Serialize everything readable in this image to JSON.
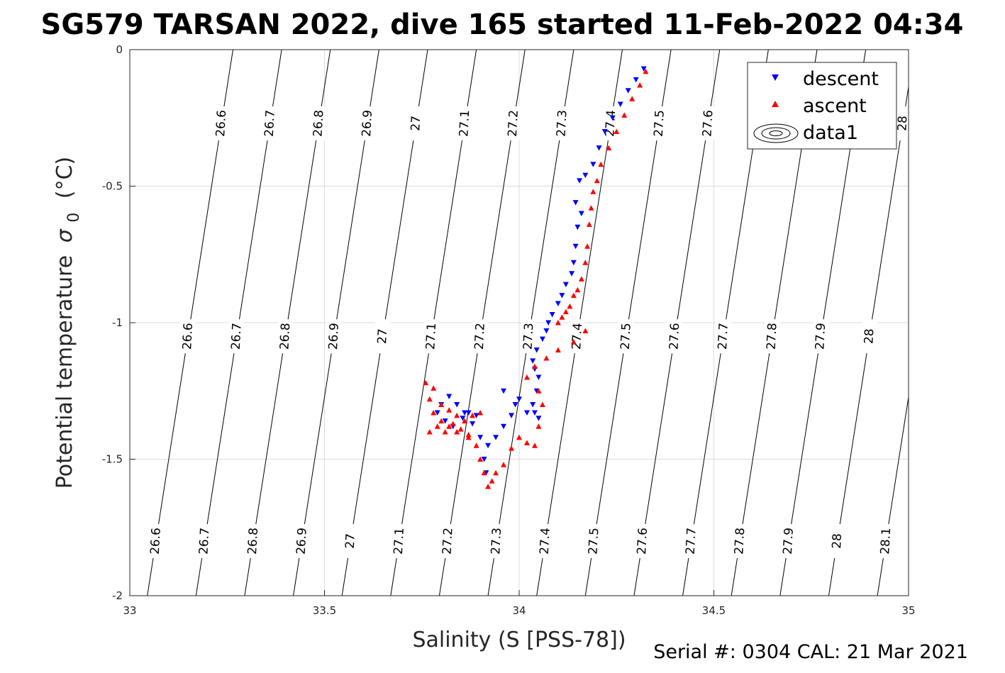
{
  "chart_data": {
    "type": "scatter",
    "title": "SG579 TARSAN 2022, dive 165 started 11-Feb-2022 04:34",
    "xlabel": "Salinity (S [PSS-78])",
    "ylabel_main": "Potential temperature",
    "ylabel_sym": "σ",
    "ylabel_sub": "0",
    "ylabel_unit": "(°C)",
    "footer": "Serial #: 0304  CAL: 21 Mar 2021",
    "xlim": [
      33,
      35
    ],
    "ylim": [
      -2,
      0
    ],
    "xticks": [
      33,
      33.5,
      34,
      34.5,
      35
    ],
    "xtick_labels": [
      "33",
      "33.5",
      "34",
      "34.5",
      "35"
    ],
    "yticks": [
      -2,
      -1.5,
      -1,
      -0.5,
      0
    ],
    "ytick_labels": [
      "-2",
      "-1.5",
      "-1",
      "-0.5",
      "0"
    ],
    "grid": true,
    "legend_placement": "top-right",
    "legend": [
      "descent",
      "ascent",
      "data1"
    ],
    "isopycnals": {
      "levels": [
        26.6,
        26.7,
        26.8,
        26.9,
        27,
        27.1,
        27.2,
        27.3,
        27.4,
        27.5,
        27.6,
        27.7,
        27.8,
        27.9,
        28,
        28.1
      ],
      "labels": [
        "26.6",
        "26.7",
        "26.8",
        "26.9",
        "27",
        "27.1",
        "27.2",
        "27.3",
        "27.4",
        "27.5",
        "27.6",
        "27.7",
        "27.8",
        "27.9",
        "28",
        "28.1"
      ],
      "salinity_at_theta_0": [
        33.265,
        33.39,
        33.515,
        33.64,
        33.765,
        33.89,
        34.015,
        34.14,
        34.265,
        34.39,
        34.515,
        34.64,
        34.765,
        34.89,
        35.015,
        35.14
      ],
      "salinity_at_theta_minus2": [
        33.045,
        33.17,
        33.295,
        33.42,
        33.545,
        33.67,
        33.795,
        33.92,
        34.045,
        34.17,
        34.295,
        34.42,
        34.545,
        34.67,
        34.795,
        34.92
      ]
    },
    "series": [
      {
        "name": "descent",
        "marker": "triangle-down",
        "color": "#0000ff",
        "points": [
          [
            34.32,
            -0.07
          ],
          [
            34.3,
            -0.11
          ],
          [
            34.28,
            -0.15
          ],
          [
            34.26,
            -0.2
          ],
          [
            34.24,
            -0.25
          ],
          [
            34.22,
            -0.3
          ],
          [
            34.205,
            -0.36
          ],
          [
            34.19,
            -0.42
          ],
          [
            34.17,
            -0.46
          ],
          [
            34.155,
            -0.48
          ],
          [
            34.145,
            -0.56
          ],
          [
            34.16,
            -0.6
          ],
          [
            34.15,
            -0.65
          ],
          [
            34.145,
            -0.72
          ],
          [
            34.14,
            -0.78
          ],
          [
            34.135,
            -0.82
          ],
          [
            34.12,
            -0.86
          ],
          [
            34.11,
            -0.9
          ],
          [
            34.1,
            -0.93
          ],
          [
            34.085,
            -0.97
          ],
          [
            34.075,
            -1.0
          ],
          [
            34.07,
            -1.03
          ],
          [
            34.06,
            -1.06
          ],
          [
            34.045,
            -1.1
          ],
          [
            34.035,
            -1.14
          ],
          [
            34.04,
            -1.17
          ],
          [
            34.05,
            -1.2
          ],
          [
            34.045,
            -1.25
          ],
          [
            34.035,
            -1.3
          ],
          [
            34.04,
            -1.33
          ],
          [
            34.05,
            -1.35
          ],
          [
            34.02,
            -1.33
          ],
          [
            33.98,
            -1.34
          ],
          [
            33.96,
            -1.38
          ],
          [
            33.94,
            -1.42
          ],
          [
            33.92,
            -1.45
          ],
          [
            33.91,
            -1.5
          ],
          [
            33.915,
            -1.55
          ],
          [
            33.9,
            -1.42
          ],
          [
            33.88,
            -1.37
          ],
          [
            33.86,
            -1.33
          ],
          [
            33.84,
            -1.3
          ],
          [
            33.82,
            -1.27
          ],
          [
            33.8,
            -1.3
          ],
          [
            33.79,
            -1.33
          ],
          [
            33.81,
            -1.36
          ],
          [
            33.83,
            -1.38
          ],
          [
            33.855,
            -1.35
          ],
          [
            33.87,
            -1.33
          ],
          [
            33.89,
            -1.34
          ],
          [
            33.96,
            -1.25
          ],
          [
            33.99,
            -1.3
          ],
          [
            34.0,
            -1.28
          ]
        ]
      },
      {
        "name": "ascent",
        "marker": "triangle-up",
        "color": "#ff0000",
        "points": [
          [
            34.325,
            -0.08
          ],
          [
            34.31,
            -0.13
          ],
          [
            34.29,
            -0.18
          ],
          [
            34.27,
            -0.24
          ],
          [
            34.25,
            -0.3
          ],
          [
            34.23,
            -0.36
          ],
          [
            34.21,
            -0.42
          ],
          [
            34.2,
            -0.48
          ],
          [
            34.19,
            -0.52
          ],
          [
            34.185,
            -0.58
          ],
          [
            34.18,
            -0.64
          ],
          [
            34.175,
            -0.72
          ],
          [
            34.17,
            -0.78
          ],
          [
            34.16,
            -0.84
          ],
          [
            34.15,
            -0.88
          ],
          [
            34.14,
            -0.9
          ],
          [
            34.13,
            -0.94
          ],
          [
            34.12,
            -0.96
          ],
          [
            34.11,
            -0.98
          ],
          [
            34.1,
            -1.0
          ],
          [
            34.17,
            -1.03
          ],
          [
            34.14,
            -1.07
          ],
          [
            34.1,
            -1.1
          ],
          [
            34.07,
            -1.13
          ],
          [
            34.04,
            -1.16
          ],
          [
            34.02,
            -1.2
          ],
          [
            34.05,
            -1.25
          ],
          [
            34.06,
            -1.3
          ],
          [
            34.05,
            -1.38
          ],
          [
            34.04,
            -1.45
          ],
          [
            34.02,
            -1.44
          ],
          [
            34.0,
            -1.42
          ],
          [
            33.98,
            -1.46
          ],
          [
            33.96,
            -1.52
          ],
          [
            33.94,
            -1.55
          ],
          [
            33.93,
            -1.58
          ],
          [
            33.92,
            -1.6
          ],
          [
            33.91,
            -1.55
          ],
          [
            33.9,
            -1.5
          ],
          [
            33.89,
            -1.45
          ],
          [
            33.87,
            -1.42
          ],
          [
            33.84,
            -1.4
          ],
          [
            33.82,
            -1.38
          ],
          [
            33.8,
            -1.36
          ],
          [
            33.78,
            -1.33
          ],
          [
            33.77,
            -1.28
          ],
          [
            33.76,
            -1.22
          ],
          [
            33.78,
            -1.24
          ],
          [
            33.8,
            -1.3
          ],
          [
            33.82,
            -1.32
          ],
          [
            33.84,
            -1.34
          ],
          [
            33.86,
            -1.36
          ],
          [
            33.88,
            -1.34
          ],
          [
            33.9,
            -1.33
          ],
          [
            33.77,
            -1.4
          ],
          [
            33.79,
            -1.38
          ],
          [
            33.81,
            -1.4
          ],
          [
            33.83,
            -1.37
          ],
          [
            33.85,
            -1.39
          ],
          [
            33.87,
            -1.41
          ]
        ]
      }
    ]
  }
}
